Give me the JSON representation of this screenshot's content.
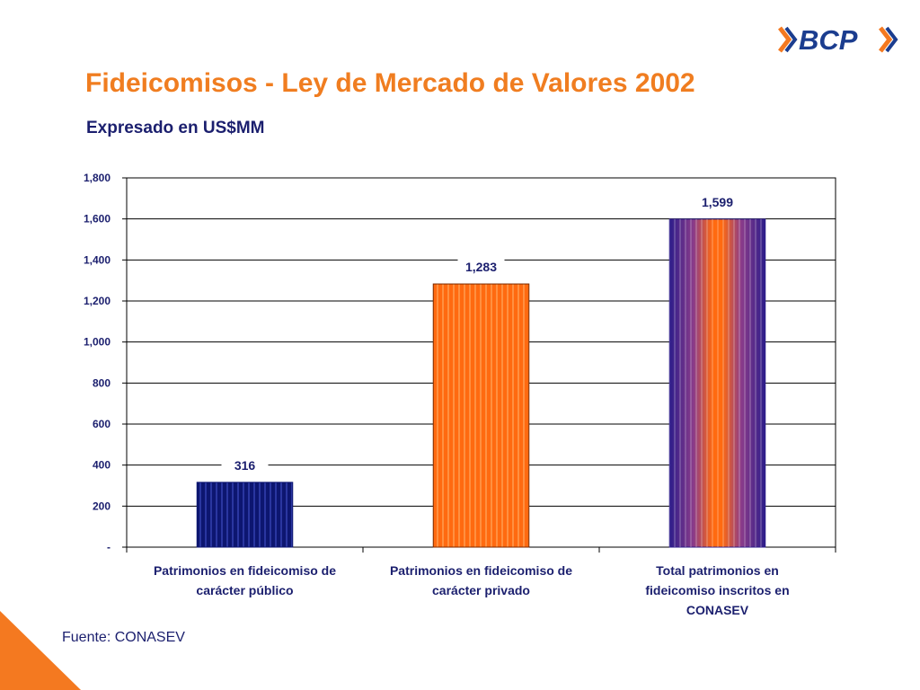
{
  "header": {
    "title": "Fideicomisos - Ley de Mercado de Valores 2002",
    "subtitle": "Expresado en US$MM",
    "logo_text": "BCP"
  },
  "footer": {
    "source": "Fuente: CONASEV"
  },
  "colors": {
    "title": "#f07d20",
    "text": "#1b1f6e",
    "bar_public": "#0d1670",
    "bar_private": "#ff6a10",
    "bar_total_outer": "#2d1d8a",
    "bar_total_inner": "#ff6a10",
    "accent_orange": "#f47920"
  },
  "chart_data": {
    "type": "bar",
    "categories": [
      [
        "Patrimonios en fideicomiso de",
        "carácter público"
      ],
      [
        "Patrimonios en fideicomiso de",
        "carácter privado"
      ],
      [
        "Total patrimonios en",
        "fideicomiso inscritos en",
        "CONASEV"
      ]
    ],
    "values": [
      316,
      1283,
      1599
    ],
    "value_labels": [
      "316",
      "1,283",
      "1,599"
    ],
    "ylim": [
      0,
      1800
    ],
    "yticks": [
      0,
      200,
      400,
      600,
      800,
      1000,
      1200,
      1400,
      1600,
      1800
    ],
    "ytick_labels": [
      "-",
      "200",
      "400",
      "600",
      "800",
      "1,000",
      "1,200",
      "1,400",
      "1,600",
      "1,800"
    ],
    "grid": true,
    "legend": "none"
  }
}
